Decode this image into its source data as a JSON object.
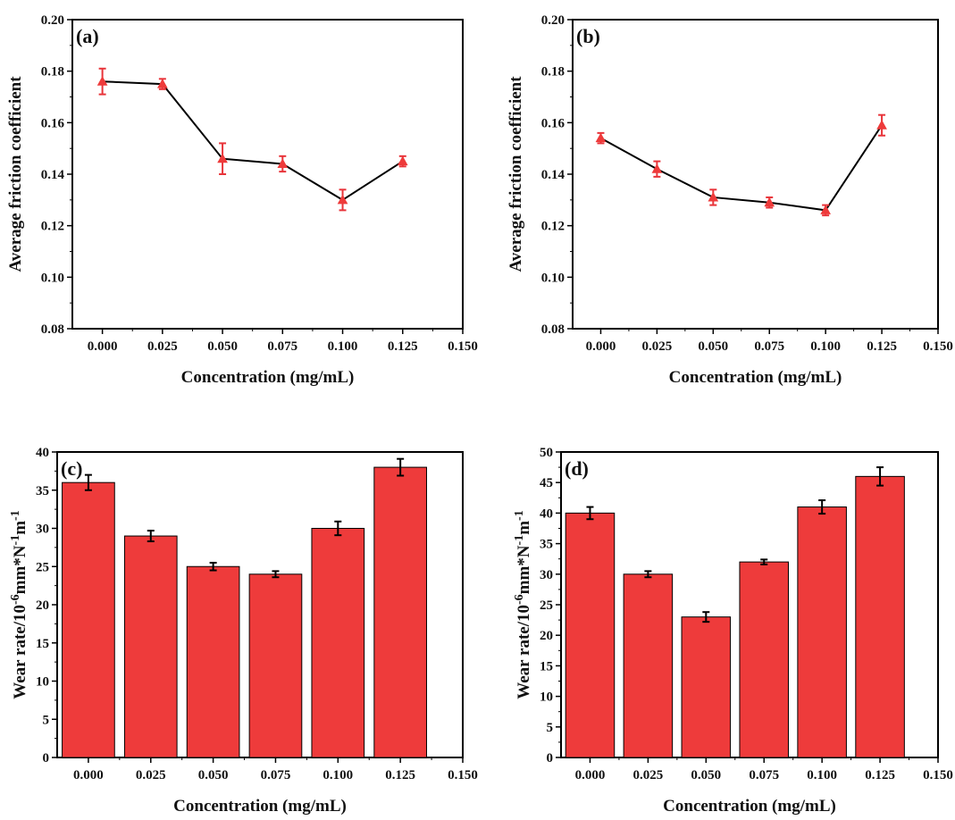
{
  "colors": {
    "accent": "#ee3b3b",
    "line": "#000000",
    "errorbar_line": "#e8343a",
    "errorbar_bar": "#000000"
  },
  "chart_data": [
    {
      "panel": "(a)",
      "type": "line",
      "x": [
        0.0,
        0.025,
        0.05,
        0.075,
        0.1,
        0.125
      ],
      "y": [
        0.176,
        0.175,
        0.146,
        0.144,
        0.13,
        0.145
      ],
      "err": [
        0.005,
        0.002,
        0.006,
        0.003,
        0.004,
        0.002
      ],
      "xlabel": "Concentration (mg/mL)",
      "ylabel": "Average friction coefficient",
      "xlim": [
        -0.0125,
        0.15
      ],
      "ylim": [
        0.08,
        0.2
      ],
      "xticks": [
        "0.000",
        "0.025",
        "0.050",
        "0.075",
        "0.100",
        "0.125",
        "0.150"
      ],
      "yticks": [
        "0.08",
        "0.10",
        "0.12",
        "0.14",
        "0.16",
        "0.18",
        "0.20"
      ],
      "marker": "triangle",
      "grid": false
    },
    {
      "panel": "(b)",
      "type": "line",
      "x": [
        0.0,
        0.025,
        0.05,
        0.075,
        0.1,
        0.125
      ],
      "y": [
        0.154,
        0.142,
        0.131,
        0.129,
        0.126,
        0.159
      ],
      "err": [
        0.002,
        0.003,
        0.003,
        0.002,
        0.002,
        0.004
      ],
      "xlabel": "Concentration (mg/mL)",
      "ylabel": "Average friction coefficient",
      "xlim": [
        -0.0125,
        0.15
      ],
      "ylim": [
        0.08,
        0.2
      ],
      "xticks": [
        "0.000",
        "0.025",
        "0.050",
        "0.075",
        "0.100",
        "0.125",
        "0.150"
      ],
      "yticks": [
        "0.08",
        "0.10",
        "0.12",
        "0.14",
        "0.16",
        "0.18",
        "0.20"
      ],
      "marker": "triangle",
      "grid": false
    },
    {
      "panel": "(c)",
      "type": "bar",
      "x": [
        0.0,
        0.025,
        0.05,
        0.075,
        0.1,
        0.125
      ],
      "y": [
        36,
        29,
        25,
        24,
        30,
        38
      ],
      "err": [
        1.0,
        0.7,
        0.5,
        0.4,
        0.9,
        1.1
      ],
      "xlabel": "Concentration (mg/mL)",
      "ylabel_parts": {
        "base": "Wear rate/10",
        "exp1": "-6",
        "mid": "mm*N",
        "exp2": "-1",
        "tail": "m",
        "exp3": "-1"
      },
      "xlim": [
        -0.0125,
        0.15
      ],
      "ylim": [
        0,
        40
      ],
      "xticks": [
        "0.000",
        "0.025",
        "0.050",
        "0.075",
        "0.100",
        "0.125",
        "0.150"
      ],
      "yticks": [
        "0",
        "5",
        "10",
        "15",
        "20",
        "25",
        "30",
        "35",
        "40"
      ],
      "grid": false
    },
    {
      "panel": "(d)",
      "type": "bar",
      "x": [
        0.0,
        0.025,
        0.05,
        0.075,
        0.1,
        0.125
      ],
      "y": [
        40,
        30,
        23,
        32,
        41,
        46
      ],
      "err": [
        1.0,
        0.5,
        0.8,
        0.4,
        1.1,
        1.5
      ],
      "xlabel": "Concentration (mg/mL)",
      "ylabel_parts": {
        "base": "Wear rate/10",
        "exp1": "-6",
        "mid": "mm*N",
        "exp2": "-1",
        "tail": "m",
        "exp3": "-1"
      },
      "xlim": [
        -0.0125,
        0.15
      ],
      "ylim": [
        0,
        50
      ],
      "xticks": [
        "0.000",
        "0.025",
        "0.050",
        "0.075",
        "0.100",
        "0.125",
        "0.150"
      ],
      "yticks": [
        "0",
        "5",
        "10",
        "15",
        "20",
        "25",
        "30",
        "35",
        "40",
        "45",
        "50"
      ],
      "grid": false
    }
  ]
}
